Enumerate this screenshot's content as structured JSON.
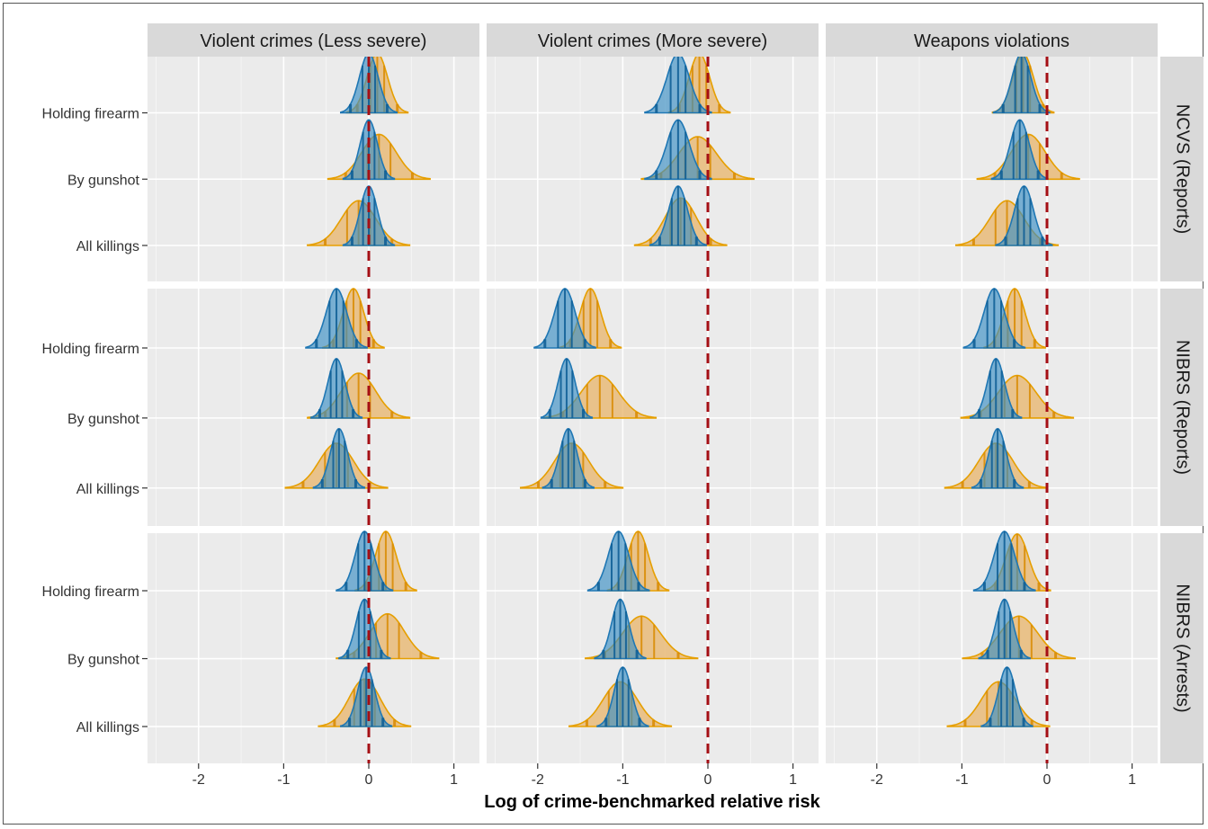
{
  "chart_data": {
    "type": "ridgeline",
    "xlabel": "Log of crime-benchmarked relative risk",
    "xlim": [
      -2.6,
      1.3
    ],
    "x_ticks": [
      -2,
      -1,
      0,
      1
    ],
    "x_tick_labels": [
      "-2",
      "-1",
      "0",
      "1"
    ],
    "reference_line_x": 0,
    "grid": true,
    "colors": {
      "blue": "#1f77b4",
      "blue_fill": "#3a8fc4",
      "orange": "#e69f00",
      "orange_fill": "#e8b46a",
      "reference": "#a50f15",
      "panel_bg": "#ebebeb",
      "strip_bg": "#d9d9d9"
    },
    "columns": [
      "Violent crimes (Less severe)",
      "Violent crimes (More severe)",
      "Weapons violations"
    ],
    "rows": [
      "NCVS (Reports)",
      "NIBRS (Reports)",
      "NIBRS (Arrests)"
    ],
    "categories": [
      "Holding firearm",
      "By gunshot",
      "All killings"
    ],
    "panels": [
      [
        [
          {
            "b": [
              0.0,
              0.11
            ],
            "o": [
              0.1,
              0.12
            ]
          },
          {
            "b": [
              0.0,
              0.1
            ],
            "o": [
              0.12,
              0.2
            ]
          },
          {
            "b": [
              0.0,
              0.1
            ],
            "o": [
              -0.12,
              0.2
            ]
          }
        ],
        [
          {
            "b": [
              -0.35,
              0.13
            ],
            "o": [
              -0.1,
              0.12
            ]
          },
          {
            "b": [
              -0.35,
              0.13
            ],
            "o": [
              -0.12,
              0.22
            ]
          },
          {
            "b": [
              -0.35,
              0.11
            ],
            "o": [
              -0.32,
              0.18
            ]
          }
        ],
        [
          {
            "b": [
              -0.3,
              0.11
            ],
            "o": [
              -0.28,
              0.12
            ]
          },
          {
            "b": [
              -0.32,
              0.11
            ],
            "o": [
              -0.22,
              0.2
            ]
          },
          {
            "b": [
              -0.27,
              0.11
            ],
            "o": [
              -0.47,
              0.2
            ]
          }
        ]
      ],
      [
        [
          {
            "b": [
              -0.38,
              0.12
            ],
            "o": [
              -0.18,
              0.12
            ]
          },
          {
            "b": [
              -0.38,
              0.1
            ],
            "o": [
              -0.12,
              0.2
            ]
          },
          {
            "b": [
              -0.35,
              0.1
            ],
            "o": [
              -0.38,
              0.2
            ]
          }
        ],
        [
          {
            "b": [
              -1.68,
              0.12
            ],
            "o": [
              -1.38,
              0.12
            ]
          },
          {
            "b": [
              -1.66,
              0.1
            ],
            "o": [
              -1.27,
              0.22
            ]
          },
          {
            "b": [
              -1.64,
              0.1
            ],
            "o": [
              -1.6,
              0.2
            ]
          }
        ],
        [
          {
            "b": [
              -0.62,
              0.12
            ],
            "o": [
              -0.38,
              0.12
            ]
          },
          {
            "b": [
              -0.6,
              0.1
            ],
            "o": [
              -0.35,
              0.22
            ]
          },
          {
            "b": [
              -0.58,
              0.1
            ],
            "o": [
              -0.6,
              0.2
            ]
          }
        ]
      ],
      [
        [
          {
            "b": [
              -0.05,
              0.11
            ],
            "o": [
              0.2,
              0.12
            ]
          },
          {
            "b": [
              -0.05,
              0.1
            ],
            "o": [
              0.22,
              0.2
            ]
          },
          {
            "b": [
              -0.03,
              0.1
            ],
            "o": [
              -0.05,
              0.18
            ]
          }
        ],
        [
          {
            "b": [
              -1.05,
              0.12
            ],
            "o": [
              -0.82,
              0.12
            ]
          },
          {
            "b": [
              -1.03,
              0.1
            ],
            "o": [
              -0.78,
              0.22
            ]
          },
          {
            "b": [
              -1.0,
              0.1
            ],
            "o": [
              -1.03,
              0.2
            ]
          }
        ],
        [
          {
            "b": [
              -0.5,
              0.12
            ],
            "o": [
              -0.35,
              0.13
            ]
          },
          {
            "b": [
              -0.5,
              0.1
            ],
            "o": [
              -0.33,
              0.22
            ]
          },
          {
            "b": [
              -0.47,
              0.1
            ],
            "o": [
              -0.57,
              0.2
            ]
          }
        ]
      ]
    ]
  }
}
